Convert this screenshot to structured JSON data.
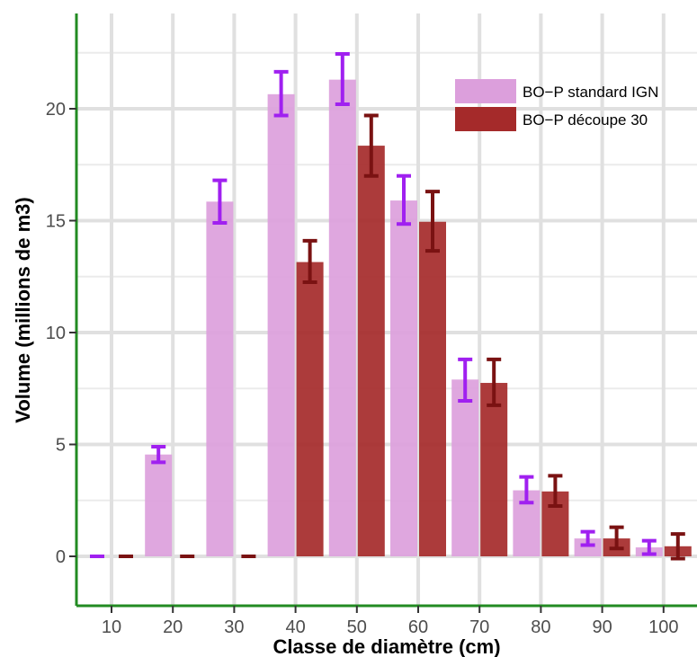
{
  "chart_data": {
    "type": "bar",
    "xlabel": "Classe de diamètre (cm)",
    "ylabel": "Volume (millions de m3)",
    "categories": [
      "10",
      "20",
      "30",
      "40",
      "50",
      "60",
      "70",
      "80",
      "90",
      "100"
    ],
    "ylim": [
      -2.3,
      24
    ],
    "yticks": [
      0,
      5,
      10,
      15,
      20
    ],
    "yticklabels": [
      "0",
      "5",
      "10",
      "15",
      "20"
    ],
    "grid": true,
    "legend_position": "top-right",
    "series": [
      {
        "name": "BO−P standard IGN",
        "color": "#dc9fdc",
        "error_color": "#a020f0",
        "values": [
          0.0,
          4.55,
          15.85,
          20.65,
          21.3,
          15.9,
          7.9,
          2.95,
          0.8,
          0.4
        ],
        "error_low": [
          0.0,
          4.2,
          14.9,
          19.7,
          20.2,
          14.85,
          6.95,
          2.4,
          0.5,
          0.1
        ],
        "error_high": [
          0.0,
          4.9,
          16.8,
          21.65,
          22.45,
          17.0,
          8.8,
          3.55,
          1.1,
          0.7
        ]
      },
      {
        "name": "BO−P découpe 30",
        "color": "#a52a2a",
        "error_color": "#7a1212",
        "values": [
          0.0,
          0.0,
          0.0,
          13.15,
          18.35,
          14.95,
          7.75,
          2.9,
          0.8,
          0.45
        ],
        "error_low": [
          0.0,
          0.0,
          0.0,
          12.25,
          17.0,
          13.65,
          6.75,
          2.25,
          0.35,
          -0.1
        ],
        "error_high": [
          0.0,
          0.0,
          0.0,
          14.1,
          19.7,
          16.3,
          8.8,
          3.6,
          1.3,
          1.0
        ]
      }
    ]
  }
}
